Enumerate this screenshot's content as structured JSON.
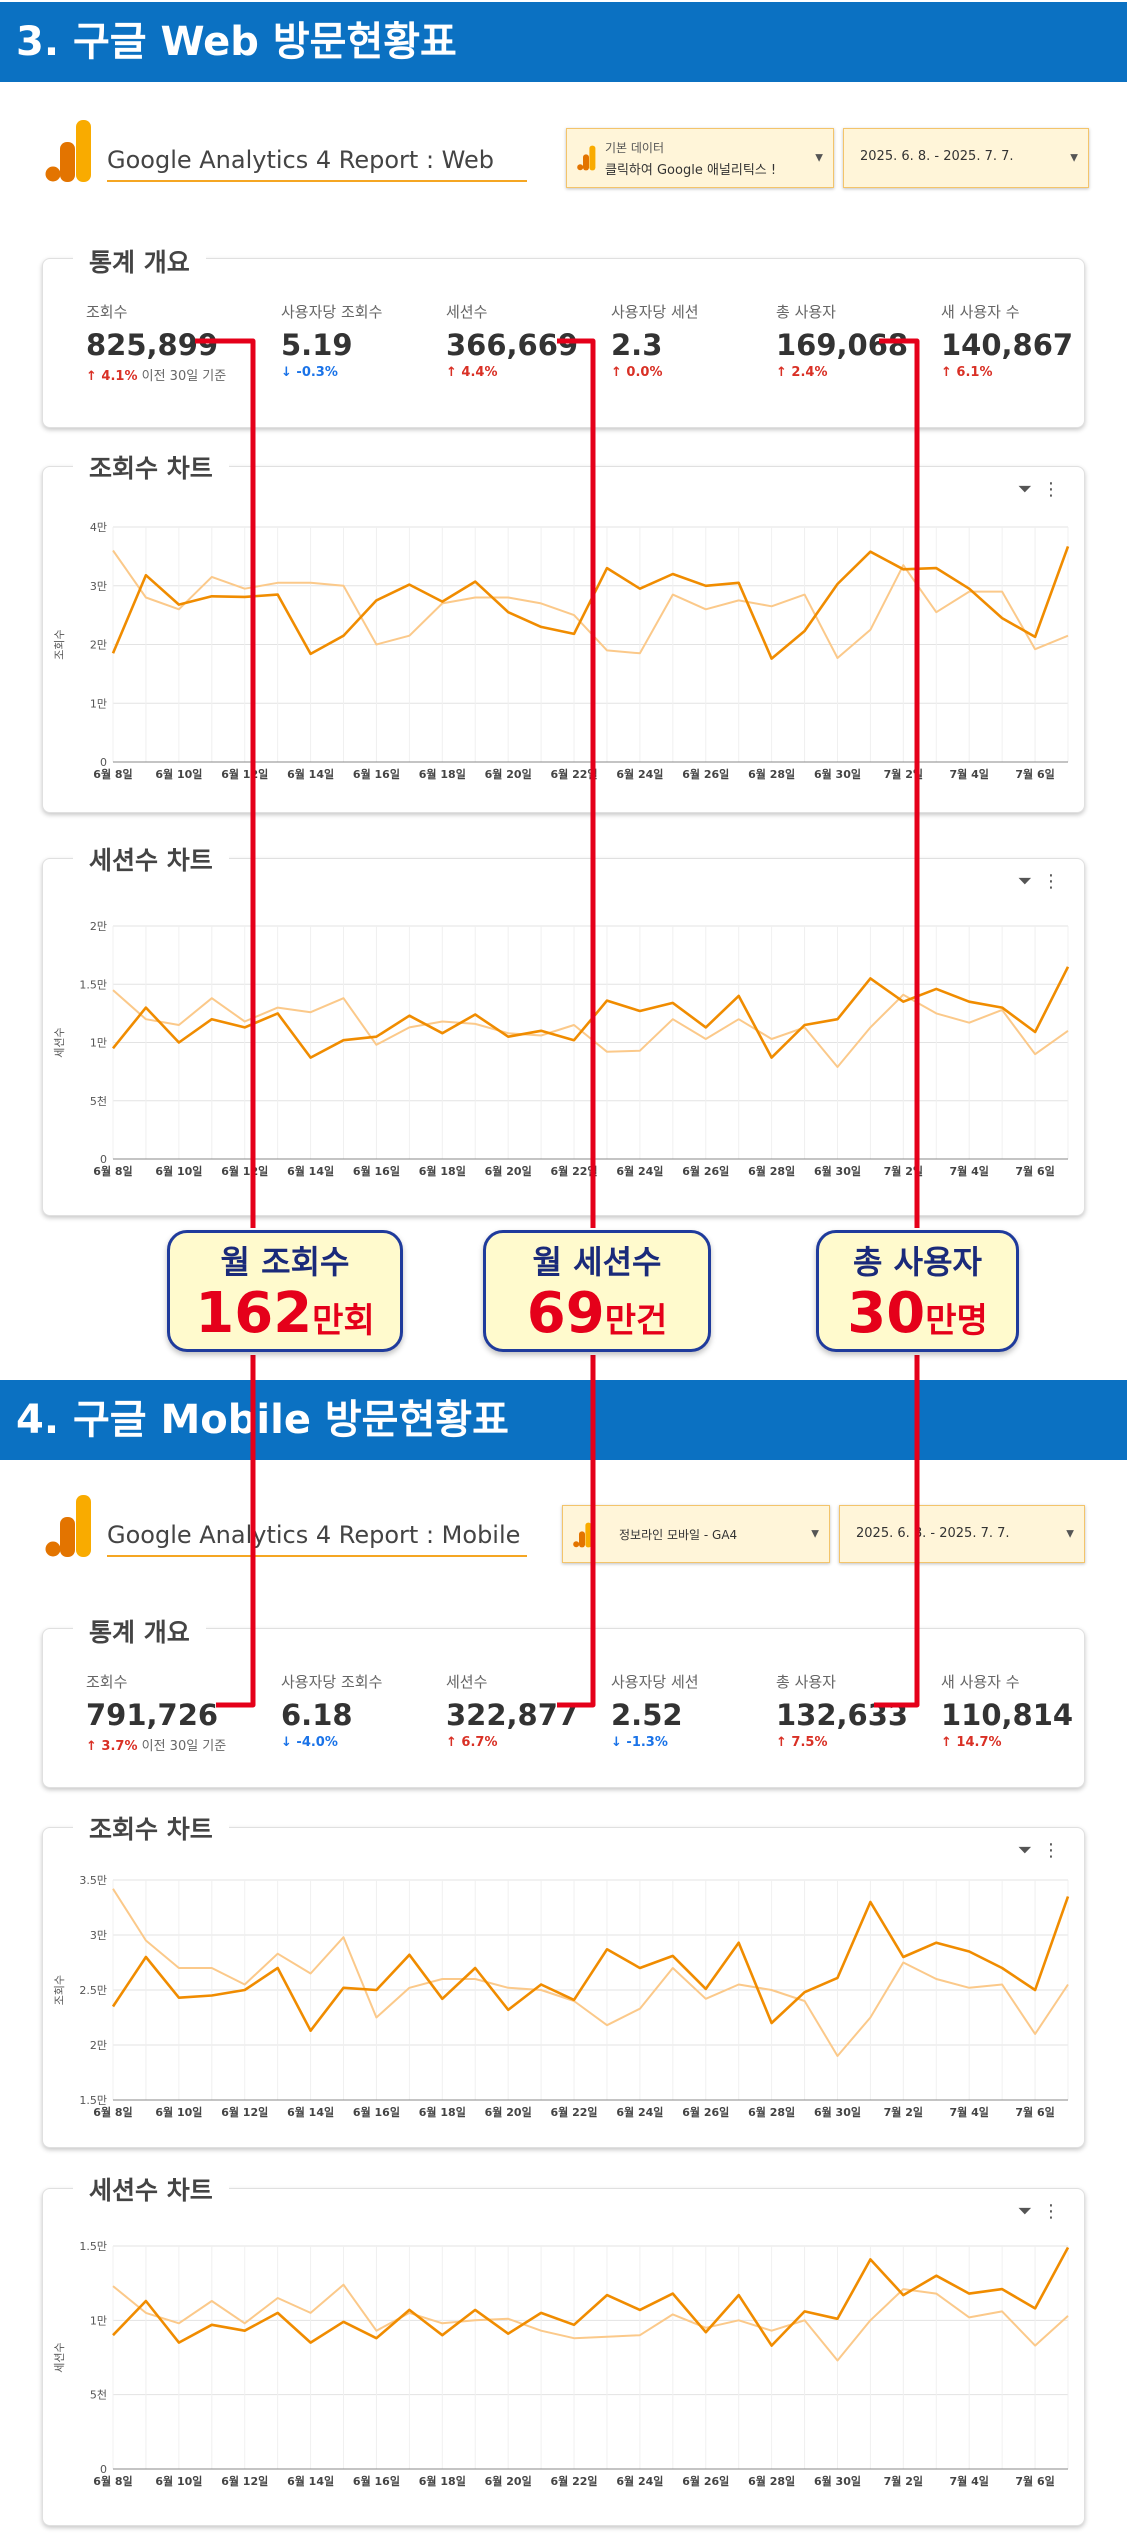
{
  "sections": [
    {
      "banner": "3. 구글 Web 방문현황표",
      "report_title": "Google Analytics 4 Report : Web",
      "source_dropdown": {
        "line1": "기본 데이터",
        "line2": "클릭하여 Google 애널리틱스 !"
      },
      "date_range": "2025. 6. 8. - 2025. 7. 7.",
      "overview_title": "통계 개요",
      "metrics": [
        {
          "label": "조회수",
          "value": "825,899",
          "delta": "4.1%",
          "dir": "up",
          "note": "이전 30일 기준"
        },
        {
          "label": "사용자당 조회수",
          "value": "5.19",
          "delta": "-0.3%",
          "dir": "down",
          "note": ""
        },
        {
          "label": "세션수",
          "value": "366,669",
          "delta": "4.4%",
          "dir": "up",
          "note": ""
        },
        {
          "label": "사용자당 세션",
          "value": "2.3",
          "delta": "0.0%",
          "dir": "up",
          "note": ""
        },
        {
          "label": "총 사용자",
          "value": "169,068",
          "delta": "2.4%",
          "dir": "up",
          "note": ""
        },
        {
          "label": "새 사용자 수",
          "value": "140,867",
          "delta": "6.1%",
          "dir": "up",
          "note": ""
        }
      ],
      "views_chart_title": "조회수 차트",
      "sessions_chart_title": "세션수 차트"
    },
    {
      "banner": "4. 구글 Mobile 방문현황표",
      "report_title": "Google Analytics 4 Report : Mobile",
      "source_dropdown": {
        "line1": "정보라인 모바일 - GA4",
        "line2": ""
      },
      "date_range": "2025. 6. 8. - 2025. 7. 7.",
      "overview_title": "통계 개요",
      "metrics": [
        {
          "label": "조회수",
          "value": "791,726",
          "delta": "3.7%",
          "dir": "up",
          "note": "이전 30일 기준"
        },
        {
          "label": "사용자당 조회수",
          "value": "6.18",
          "delta": "-4.0%",
          "dir": "down",
          "note": ""
        },
        {
          "label": "세션수",
          "value": "322,877",
          "delta": "6.7%",
          "dir": "up",
          "note": ""
        },
        {
          "label": "사용자당 세션",
          "value": "2.52",
          "delta": "-1.3%",
          "dir": "down",
          "note": ""
        },
        {
          "label": "총 사용자",
          "value": "132,633",
          "delta": "7.5%",
          "dir": "up",
          "note": ""
        },
        {
          "label": "새 사용자 수",
          "value": "110,814",
          "delta": "14.7%",
          "dir": "up",
          "note": ""
        }
      ],
      "views_chart_title": "조회수 차트",
      "sessions_chart_title": "세션수 차트"
    }
  ],
  "callouts": [
    {
      "title": "월 조회수",
      "number": "162",
      "unit": "만회"
    },
    {
      "title": "월 세션수",
      "number": "69",
      "unit": "만건"
    },
    {
      "title": "총 사용자",
      "number": "30",
      "unit": "만명"
    }
  ],
  "colors": {
    "banner": "#0b71c2",
    "current_series": "#f08c00",
    "previous_series": "#fbc98a",
    "connector": "#e5001a"
  },
  "chart_data": [
    {
      "type": "line",
      "title": "조회수 차트",
      "ylabel": "조회수",
      "ylim": [
        0,
        40000
      ],
      "yticks": [
        0,
        10000,
        20000,
        30000,
        40000
      ],
      "ytick_labels": [
        "0",
        "1만",
        "2만",
        "3만",
        "4만"
      ],
      "x": [
        "6월 8일",
        "6월 9일",
        "6월 10일",
        "6월 11일",
        "6월 12일",
        "6월 13일",
        "6월 14일",
        "6월 15일",
        "6월 16일",
        "6월 17일",
        "6월 18일",
        "6월 19일",
        "6월 20일",
        "6월 21일",
        "6월 22일",
        "6월 23일",
        "6월 24일",
        "6월 25일",
        "6월 26일",
        "6월 27일",
        "6월 28일",
        "6월 29일",
        "6월 30일",
        "7월 1일",
        "7월 2일",
        "7월 3일",
        "7월 4일",
        "7월 5일",
        "7월 6일",
        "7월 7일"
      ],
      "xtick_labels": [
        "6월 8일",
        "6월 10일",
        "6월 12일",
        "6월 14일",
        "6월 16일",
        "6월 18일",
        "6월 20일",
        "6월 22일",
        "6월 24일",
        "6월 26일",
        "6월 28일",
        "6월 30일",
        "7월 2일",
        "7월 4일",
        "7월 6일"
      ],
      "series": [
        {
          "values": [
            18500,
            31800,
            26800,
            28200,
            28100,
            28500,
            18400,
            21500,
            27500,
            30200,
            27300,
            30700,
            25500,
            23000,
            21800,
            33000,
            29500,
            32000,
            30000,
            30500,
            17600,
            22300,
            30300,
            35800,
            32800,
            33000,
            29500,
            24500,
            21300,
            36700
          ]
        },
        {
          "values": [
            36000,
            28000,
            26000,
            31500,
            29500,
            30500,
            30500,
            30000,
            20000,
            21500,
            27000,
            28000,
            28000,
            27000,
            25000,
            19000,
            18500,
            28500,
            26000,
            27500,
            26500,
            28500,
            17700,
            22500,
            33500,
            25500,
            29000,
            29000,
            19200,
            21500
          ]
        }
      ]
    },
    {
      "type": "line",
      "title": "세션수 차트",
      "ylabel": "세션수",
      "ylim": [
        0,
        20000
      ],
      "yticks": [
        0,
        5000,
        10000,
        15000,
        20000
      ],
      "ytick_labels": [
        "0",
        "5천",
        "1만",
        "1.5만",
        "2만"
      ],
      "x": [
        "6월 8일",
        "6월 9일",
        "6월 10일",
        "6월 11일",
        "6월 12일",
        "6월 13일",
        "6월 14일",
        "6월 15일",
        "6월 16일",
        "6월 17일",
        "6월 18일",
        "6월 19일",
        "6월 20일",
        "6월 21일",
        "6월 22일",
        "6월 23일",
        "6월 24일",
        "6월 25일",
        "6월 26일",
        "6월 27일",
        "6월 28일",
        "6월 29일",
        "6월 30일",
        "7월 1일",
        "7월 2일",
        "7월 3일",
        "7월 4일",
        "7월 5일",
        "7월 6일",
        "7월 7일"
      ],
      "xtick_labels": [
        "6월 8일",
        "6월 10일",
        "6월 12일",
        "6월 14일",
        "6월 16일",
        "6월 18일",
        "6월 20일",
        "6월 22일",
        "6월 24일",
        "6월 26일",
        "6월 28일",
        "6월 30일",
        "7월 2일",
        "7월 4일",
        "7월 6일"
      ],
      "series": [
        {
          "values": [
            9500,
            13000,
            10000,
            12000,
            11300,
            12500,
            8700,
            10200,
            10500,
            12300,
            10800,
            12400,
            10500,
            11000,
            10200,
            13600,
            12700,
            13400,
            11300,
            14000,
            8700,
            11500,
            12000,
            15500,
            13500,
            14600,
            13500,
            13000,
            10900,
            16500
          ]
        },
        {
          "values": [
            14500,
            12000,
            11500,
            13800,
            11800,
            13000,
            12600,
            13800,
            9800,
            11300,
            11800,
            11600,
            10800,
            10600,
            11500,
            9200,
            9300,
            12000,
            10300,
            12000,
            10300,
            11300,
            7900,
            11300,
            14100,
            12500,
            11700,
            12800,
            9000,
            11000
          ]
        }
      ]
    },
    {
      "type": "line",
      "title": "조회수 차트",
      "ylabel": "조회수",
      "ylim": [
        15000,
        35000
      ],
      "yticks": [
        15000,
        20000,
        25000,
        30000,
        35000
      ],
      "ytick_labels": [
        "1.5만",
        "2만",
        "2.5만",
        "3만",
        "3.5만"
      ],
      "x": [
        "6월 8일",
        "6월 9일",
        "6월 10일",
        "6월 11일",
        "6월 12일",
        "6월 13일",
        "6월 14일",
        "6월 15일",
        "6월 16일",
        "6월 17일",
        "6월 18일",
        "6월 19일",
        "6월 20일",
        "6월 21일",
        "6월 22일",
        "6월 23일",
        "6월 24일",
        "6월 25일",
        "6월 26일",
        "6월 27일",
        "6월 28일",
        "6월 29일",
        "6월 30일",
        "7월 1일",
        "7월 2일",
        "7월 3일",
        "7월 4일",
        "7월 5일",
        "7월 6일",
        "7월 7일"
      ],
      "xtick_labels": [
        "6월 8일",
        "6월 10일",
        "6월 12일",
        "6월 14일",
        "6월 16일",
        "6월 18일",
        "6월 20일",
        "6월 22일",
        "6월 24일",
        "6월 26일",
        "6월 28일",
        "6월 30일",
        "7월 2일",
        "7월 4일",
        "7월 6일"
      ],
      "series": [
        {
          "values": [
            23500,
            28000,
            24300,
            24500,
            25000,
            27000,
            21300,
            25200,
            25000,
            28200,
            24200,
            27000,
            23200,
            25500,
            24100,
            28700,
            27000,
            28100,
            25100,
            29300,
            22000,
            24800,
            26100,
            33000,
            28000,
            29300,
            28500,
            27000,
            25000,
            33500
          ]
        },
        {
          "values": [
            34200,
            29500,
            27000,
            27000,
            25500,
            28300,
            26500,
            29800,
            22500,
            25200,
            26000,
            26000,
            25200,
            25000,
            24000,
            21800,
            23300,
            27000,
            24200,
            25500,
            25000,
            24000,
            19000,
            22500,
            27500,
            26000,
            25200,
            25500,
            21000,
            25500
          ]
        }
      ]
    },
    {
      "type": "line",
      "title": "세션수 차트",
      "ylabel": "세션수",
      "ylim": [
        0,
        15000
      ],
      "yticks": [
        0,
        5000,
        10000,
        15000
      ],
      "ytick_labels": [
        "0",
        "5천",
        "1만",
        "1.5만"
      ],
      "x": [
        "6월 8일",
        "6월 9일",
        "6월 10일",
        "6월 11일",
        "6월 12일",
        "6월 13일",
        "6월 14일",
        "6월 15일",
        "6월 16일",
        "6월 17일",
        "6월 18일",
        "6월 19일",
        "6월 20일",
        "6월 21일",
        "6월 22일",
        "6월 23일",
        "6월 24일",
        "6월 25일",
        "6월 26일",
        "6월 27일",
        "6월 28일",
        "6월 29일",
        "6월 30일",
        "7월 1일",
        "7월 2일",
        "7월 3일",
        "7월 4일",
        "7월 5일",
        "7월 6일",
        "7월 7일"
      ],
      "xtick_labels": [
        "6월 8일",
        "6월 10일",
        "6월 12일",
        "6월 14일",
        "6월 16일",
        "6월 18일",
        "6월 20일",
        "6월 22일",
        "6월 24일",
        "6월 26일",
        "6월 28일",
        "6월 30일",
        "7월 2일",
        "7월 4일",
        "7월 6일"
      ],
      "series": [
        {
          "values": [
            9000,
            11300,
            8500,
            9700,
            9300,
            10500,
            8500,
            9900,
            8800,
            10700,
            9000,
            10700,
            9100,
            10500,
            9700,
            11700,
            10700,
            11800,
            9200,
            11700,
            8300,
            10600,
            10100,
            14100,
            11700,
            13000,
            11800,
            12100,
            10800,
            14900
          ]
        },
        {
          "values": [
            12300,
            10500,
            9800,
            11300,
            9800,
            11500,
            10500,
            12400,
            9300,
            10500,
            9800,
            10000,
            10100,
            9300,
            8800,
            8900,
            9000,
            10400,
            9500,
            10000,
            9300,
            10000,
            7300,
            10000,
            12100,
            11800,
            10200,
            10600,
            8300,
            10300
          ]
        }
      ]
    }
  ]
}
